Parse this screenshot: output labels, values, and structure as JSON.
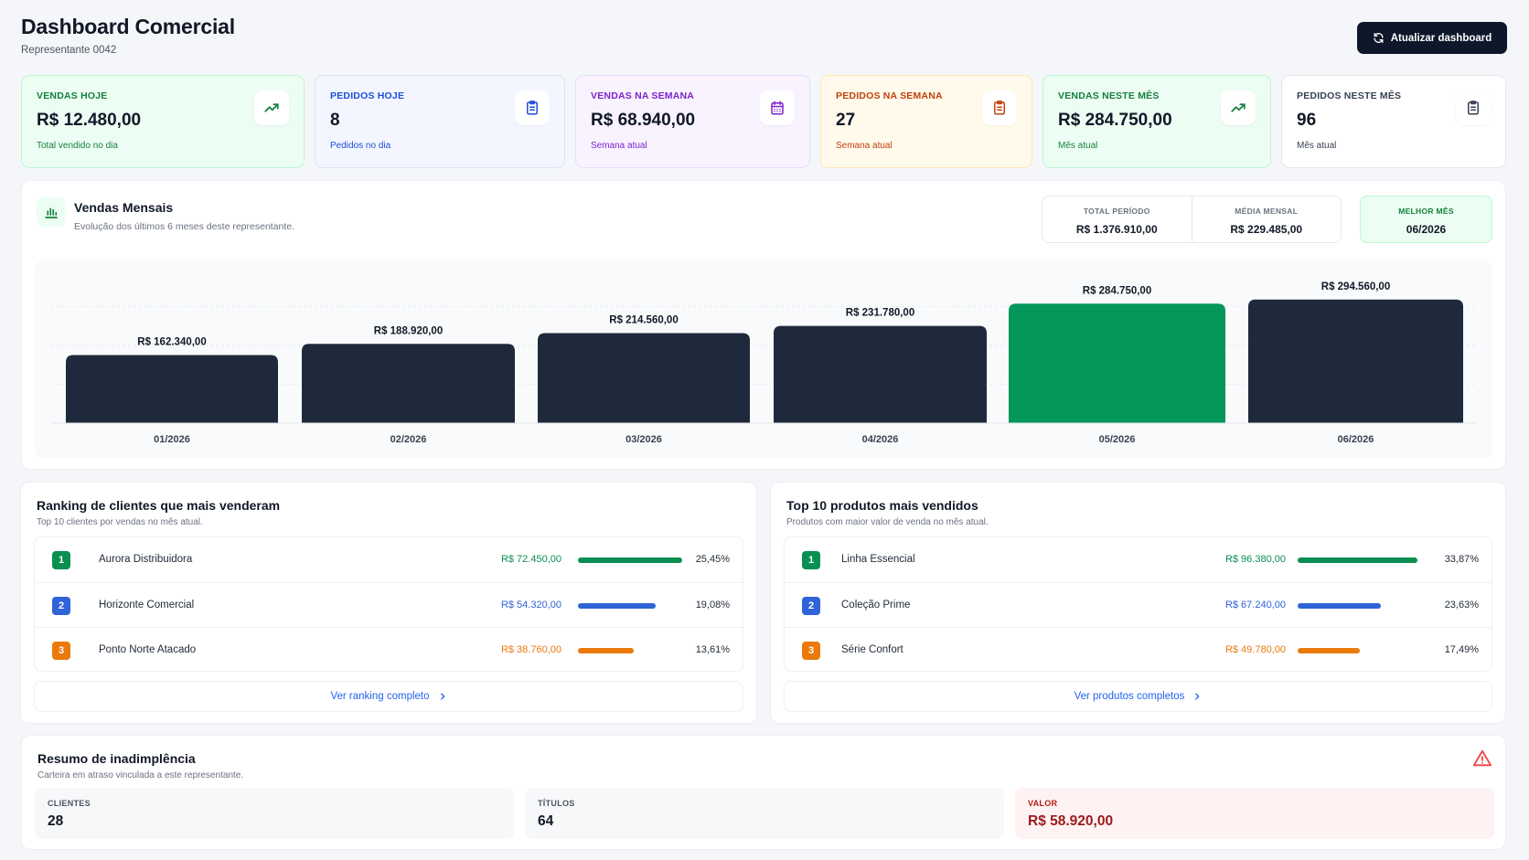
{
  "header": {
    "title": "Dashboard Comercial",
    "subtitle": "Representante 0042",
    "refresh_label": "Atualizar dashboard"
  },
  "kpis": [
    {
      "label": "VENDAS HOJE",
      "value": "R$ 12.480,00",
      "sub": "Total vendido no dia",
      "icon": "trending-up-icon",
      "accent": "#15803d",
      "bg": "#ecfdf3",
      "border": "#bbf7d0"
    },
    {
      "label": "PEDIDOS HOJE",
      "value": "8",
      "sub": "Pedidos no dia",
      "icon": "clipboard-icon",
      "accent": "#1d4ed8",
      "bg": "#f3f6ff",
      "border": "#dbe3f5"
    },
    {
      "label": "VENDAS NA SEMANA",
      "value": "R$ 68.940,00",
      "sub": "Semana atual",
      "icon": "calendar-icon",
      "accent": "#7e22ce",
      "bg": "#f8f3ff",
      "border": "#e9dcfb"
    },
    {
      "label": "PEDIDOS NA SEMANA",
      "value": "27",
      "sub": "Semana atual",
      "icon": "clipboard-icon",
      "accent": "#c2410c",
      "bg": "#fffaeb",
      "border": "#fde7b0"
    },
    {
      "label": "VENDAS NESTE MÊS",
      "value": "R$ 284.750,00",
      "sub": "Mês atual",
      "icon": "trending-up-icon",
      "accent": "#15803d",
      "bg": "#ecfdf3",
      "border": "#bbf7d0"
    },
    {
      "label": "PEDIDOS NESTE MÊS",
      "value": "96",
      "sub": "Mês atual",
      "icon": "clipboard-icon",
      "accent": "#374151",
      "bg": "#ffffff",
      "border": "#e5e7eb"
    }
  ],
  "monthly": {
    "title": "Vendas Mensais",
    "subtitle": "Evolução dos últimos 6 meses deste representante.",
    "stats": [
      {
        "label": "TOTAL PERÍODO",
        "value": "R$ 1.376.910,00"
      },
      {
        "label": "MÉDIA MENSAL",
        "value": "R$ 229.485,00"
      }
    ],
    "best": {
      "label": "MELHOR MÊS",
      "value": "06/2026"
    }
  },
  "chart_data": {
    "type": "bar",
    "categories": [
      "01/2026",
      "02/2026",
      "03/2026",
      "04/2026",
      "05/2026",
      "06/2026"
    ],
    "values": [
      162340,
      188920,
      214560,
      231780,
      284750,
      294560
    ],
    "value_labels": [
      "R$ 162.340,00",
      "R$ 188.920,00",
      "R$ 214.560,00",
      "R$ 231.780,00",
      "R$ 284.750,00",
      "R$ 294.560,00"
    ],
    "highlight_index": 4,
    "colors": {
      "default": "#1e293b",
      "highlight": "#05965a"
    },
    "ylim": [
      0,
      310000
    ],
    "grid": true
  },
  "clients": {
    "title": "Ranking de clientes que mais venderam",
    "subtitle": "Top 10 clientes por vendas no mês atual.",
    "rows": [
      {
        "rank": "1",
        "name": "Aurora Distribuidora",
        "value": "R$ 72.450,00",
        "pct": "25,45%",
        "share": 25.45,
        "color": "#0a8f52"
      },
      {
        "rank": "2",
        "name": "Horizonte Comercial",
        "value": "R$ 54.320,00",
        "pct": "19,08%",
        "share": 19.08,
        "color": "#2f63d6"
      },
      {
        "rank": "3",
        "name": "Ponto Norte Atacado",
        "value": "R$ 38.760,00",
        "pct": "13,61%",
        "share": 13.61,
        "color": "#ea7a0c"
      }
    ],
    "link": "Ver ranking completo"
  },
  "products": {
    "title": "Top 10 produtos mais vendidos",
    "subtitle": "Produtos com maior valor de venda no mês atual.",
    "rows": [
      {
        "rank": "1",
        "name": "Linha Essencial",
        "value": "R$ 96.380,00",
        "pct": "33,87%",
        "share": 33.87,
        "color": "#0a8f52"
      },
      {
        "rank": "2",
        "name": "Coleção Prime",
        "value": "R$ 67.240,00",
        "pct": "23,63%",
        "share": 23.63,
        "color": "#2f63d6"
      },
      {
        "rank": "3",
        "name": "Série Confort",
        "value": "R$ 49.780,00",
        "pct": "17,49%",
        "share": 17.49,
        "color": "#ea7a0c"
      }
    ],
    "link": "Ver produtos completos"
  },
  "default": {
    "title": "Resumo de inadimplência",
    "subtitle": "Carteira em atraso vinculada a este representante.",
    "cards": [
      {
        "label": "CLIENTES",
        "value": "28"
      },
      {
        "label": "TÍTULOS",
        "value": "64"
      },
      {
        "label": "VALOR",
        "value": "R$ 58.920,00"
      }
    ]
  }
}
